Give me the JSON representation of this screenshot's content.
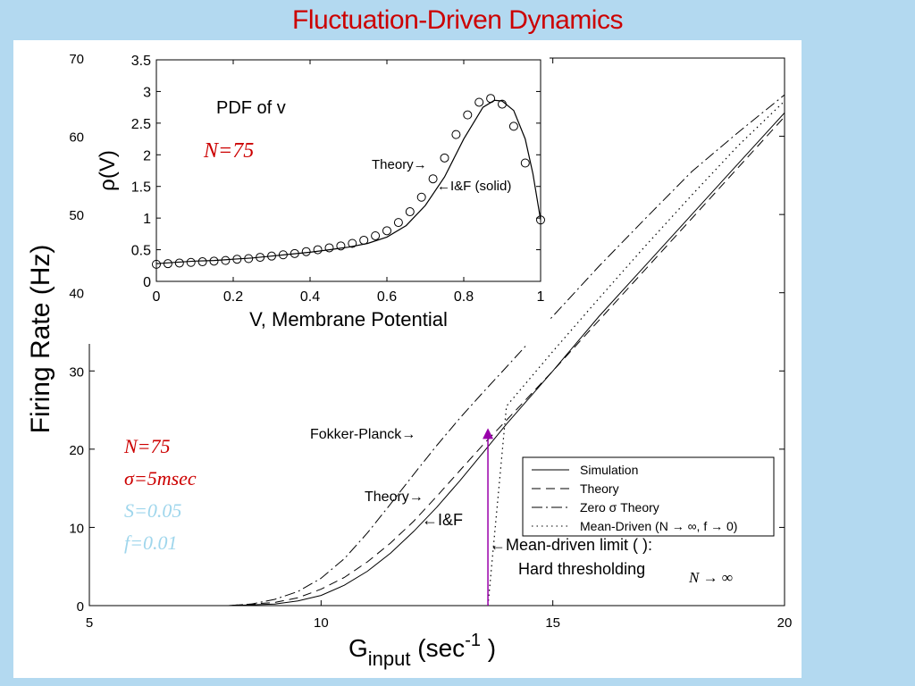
{
  "page_title": "Fluctuation-Driven Dynamics",
  "chart_data": [
    {
      "type": "line",
      "xlabel_main": "G",
      "xlabel_sub": "input",
      "xlabel_unit_open": "(sec",
      "xlabel_sup": "-1",
      "xlabel_unit_close": ")",
      "ylabel": "Firing Rate (Hz)",
      "xlim": [
        5,
        20
      ],
      "ylim": [
        0,
        70
      ],
      "x_ticks": [
        5,
        10,
        15,
        20
      ],
      "y_ticks": [
        0,
        10,
        20,
        30,
        40,
        50,
        60,
        70
      ],
      "legend_position": "bottom-right",
      "series": [
        {
          "name": "Simulation",
          "style": "solid",
          "x": [
            5,
            8,
            9,
            9.5,
            10,
            10.5,
            11,
            11.5,
            12,
            12.5,
            13,
            13.5,
            14,
            15,
            16,
            17,
            18,
            19,
            20
          ],
          "y": [
            0,
            0,
            0.2,
            0.6,
            1.3,
            2.6,
            4.4,
            6.7,
            9.5,
            12.6,
            16.0,
            19.6,
            23.2,
            30.0,
            37.0,
            43.5,
            50.0,
            56.5,
            63.0
          ]
        },
        {
          "name": "Theory",
          "style": "dashed",
          "x": [
            5,
            8,
            9,
            9.5,
            10,
            10.5,
            11,
            11.5,
            12,
            12.5,
            13,
            13.5,
            14,
            15,
            16,
            17,
            18,
            19,
            20
          ],
          "y": [
            0,
            0,
            0.4,
            1.0,
            2.1,
            3.6,
            5.6,
            8.0,
            10.8,
            14.0,
            17.3,
            20.6,
            23.7,
            30.0,
            36.5,
            43.0,
            49.5,
            56.0,
            62.5
          ]
        },
        {
          "name": "Zero σ Theory",
          "style": "dashdot",
          "x": [
            5,
            8,
            8.5,
            9,
            9.5,
            10,
            10.5,
            11,
            11.5,
            12,
            12.5,
            13,
            13.5,
            14,
            15,
            16,
            17,
            18,
            19,
            20
          ],
          "y": [
            0,
            0,
            0.2,
            0.8,
            1.8,
            3.5,
            6.0,
            9.3,
            13.0,
            16.8,
            20.5,
            24.0,
            27.3,
            30.5,
            37.0,
            43.4,
            49.5,
            55.5,
            60.5,
            65.3
          ]
        },
        {
          "name": "Mean-Driven (N  → ∞, f → 0)",
          "style": "dotted",
          "x": [
            13.6,
            14,
            15,
            16,
            17,
            18,
            19,
            20
          ],
          "y": [
            0,
            25.5,
            32.5,
            39.3,
            46.0,
            52.5,
            58.8,
            64.5
          ]
        }
      ],
      "annotations": {
        "fokker_planck": "Fokker-Planck→",
        "theory": "Theory→",
        "if_label": "←I&F",
        "mean_driven_limit": "←Mean-driven limit (                  ):",
        "hard_thresholding": "Hard thresholding",
        "n_limit": "N → ∞",
        "params": [
          "N=75",
          "σ=5msec",
          "S=0.05",
          "f=0.01"
        ],
        "threshold_x": 13.6,
        "threshold_y": 22
      },
      "colors": {
        "red": "#cc0000",
        "blue": "#3333cc",
        "purple": "#9900aa",
        "light_blue": "#9fd6ec"
      }
    },
    {
      "type": "line",
      "title": "PDF of v",
      "xlabel": "V, Membrane Potential",
      "ylabel": "ρ(V)",
      "xlim": [
        0,
        1
      ],
      "ylim": [
        0,
        3.5
      ],
      "x_ticks": [
        "0",
        "0.2",
        "0.4",
        "0.6",
        "0.8",
        "1"
      ],
      "y_ticks": [
        "0",
        "0.5",
        "1",
        "1.5",
        "2",
        "2.5",
        "3",
        "3.5"
      ],
      "n_label": "N=75",
      "theory_label": "Theory→",
      "if_label": "←I&F (solid)",
      "series": [
        {
          "name": "Theory",
          "style": "circles",
          "x": [
            0.0,
            0.03,
            0.06,
            0.09,
            0.12,
            0.15,
            0.18,
            0.21,
            0.24,
            0.27,
            0.3,
            0.33,
            0.36,
            0.39,
            0.42,
            0.45,
            0.48,
            0.51,
            0.54,
            0.57,
            0.6,
            0.63,
            0.66,
            0.69,
            0.72,
            0.75,
            0.78,
            0.81,
            0.84,
            0.87,
            0.9,
            0.93,
            0.96,
            1.0
          ],
          "y": [
            0.27,
            0.28,
            0.29,
            0.3,
            0.31,
            0.32,
            0.33,
            0.35,
            0.36,
            0.38,
            0.4,
            0.42,
            0.44,
            0.47,
            0.5,
            0.53,
            0.56,
            0.6,
            0.65,
            0.72,
            0.8,
            0.93,
            1.1,
            1.33,
            1.62,
            1.95,
            2.32,
            2.63,
            2.83,
            2.89,
            2.8,
            2.45,
            1.87,
            0.97
          ]
        },
        {
          "name": "I&F (solid)",
          "style": "solid",
          "x": [
            0.0,
            0.05,
            0.1,
            0.15,
            0.2,
            0.25,
            0.3,
            0.35,
            0.4,
            0.45,
            0.5,
            0.55,
            0.6,
            0.65,
            0.7,
            0.75,
            0.8,
            0.85,
            0.88,
            0.9,
            0.93,
            0.96,
            0.98,
            1.0
          ],
          "y": [
            0.28,
            0.3,
            0.32,
            0.33,
            0.35,
            0.37,
            0.4,
            0.43,
            0.46,
            0.5,
            0.54,
            0.6,
            0.7,
            0.88,
            1.2,
            1.65,
            2.25,
            2.75,
            2.86,
            2.85,
            2.7,
            2.25,
            1.7,
            0.97
          ]
        }
      ]
    }
  ]
}
